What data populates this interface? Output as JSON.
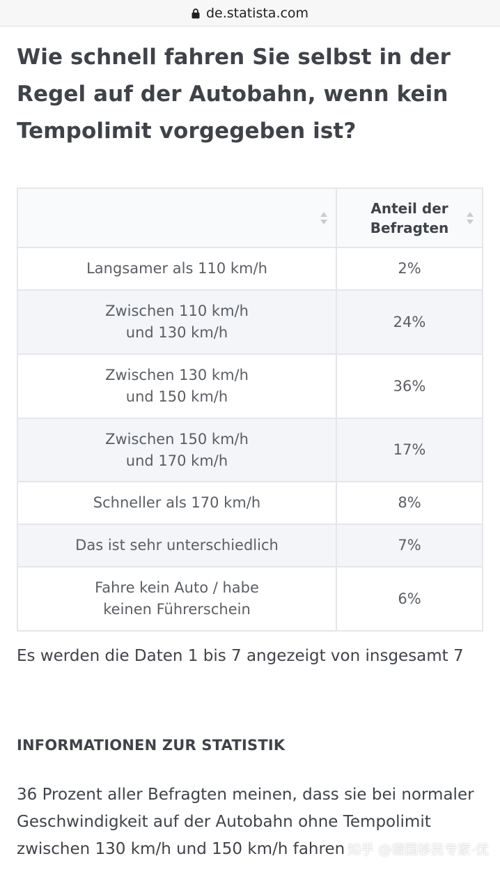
{
  "browser": {
    "url": "de.statista.com",
    "icon": "lock-icon"
  },
  "page": {
    "title": "Wie schnell fahren Sie selbst in der Regel auf der Autobahn, wenn kein Tempolimit vorgegeben ist?"
  },
  "table": {
    "headers": [
      "",
      "Anteil der Befragten"
    ],
    "sort_icon": "sort-icon",
    "rows": [
      {
        "label": "Langsamer als 110 km/h",
        "value": "2%"
      },
      {
        "label": "Zwischen 110 km/h\nund 130 km/h",
        "value": "24%"
      },
      {
        "label": "Zwischen 130 km/h\nund 150 km/h",
        "value": "36%"
      },
      {
        "label": "Zwischen 150 km/h\nund 170 km/h",
        "value": "17%"
      },
      {
        "label": "Schneller als 170 km/h",
        "value": "8%"
      },
      {
        "label": "Das ist sehr unterschiedlich",
        "value": "7%"
      },
      {
        "label": "Fahre kein Auto / habe\nkeinen Führerschein",
        "value": "6%"
      }
    ],
    "pagination_text": "Es werden die Daten 1 bis 7 angezeigt von insgesamt 7"
  },
  "info": {
    "heading": "INFORMATIONEN ZUR STATISTIK",
    "text": "36 Prozent aller Befragten meinen, dass sie bei normaler Geschwindigkeit auf der Autobahn ohne Tempolimit zwischen 130 km/h und 150 km/h fahren"
  },
  "watermark": "知乎 @德国移民专家-优"
}
